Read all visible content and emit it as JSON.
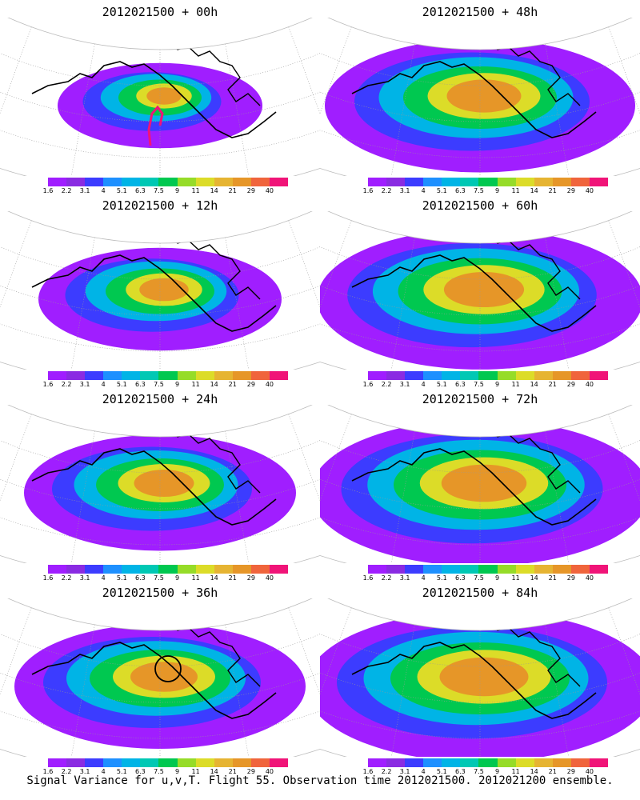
{
  "colorbar": {
    "ticks": [
      "1.6",
      "2.2",
      "3.1",
      "4",
      "5.1",
      "6.3",
      "7.5",
      "9",
      "11",
      "14",
      "21",
      "29",
      "40"
    ],
    "colors": [
      "#a01eff",
      "#8a2be2",
      "#3c3cff",
      "#1e90ff",
      "#00b4e6",
      "#00c8b4",
      "#00c850",
      "#96dc28",
      "#dcdc28",
      "#e6b432",
      "#e69628",
      "#f0643c",
      "#f01478"
    ]
  },
  "panels": [
    {
      "title": "2012021500 + 00h",
      "level": 0.15,
      "marker": "track"
    },
    {
      "title": "2012021500 + 12h",
      "level": 0.35,
      "marker": "none"
    },
    {
      "title": "2012021500 + 24h",
      "level": 0.5,
      "marker": "none"
    },
    {
      "title": "2012021500 + 36h",
      "level": 0.6,
      "marker": "circle"
    },
    {
      "title": "2012021500 + 48h",
      "level": 0.7,
      "marker": "none"
    },
    {
      "title": "2012021500 + 60h",
      "level": 0.78,
      "marker": "none"
    },
    {
      "title": "2012021500 + 72h",
      "level": 0.85,
      "marker": "none"
    },
    {
      "title": "2012021500 + 84h",
      "level": 0.9,
      "marker": "none"
    }
  ],
  "footer": "Signal Variance for u,v,T. Flight 55. Observation time 2012021500. 2012021200 ensemble."
}
